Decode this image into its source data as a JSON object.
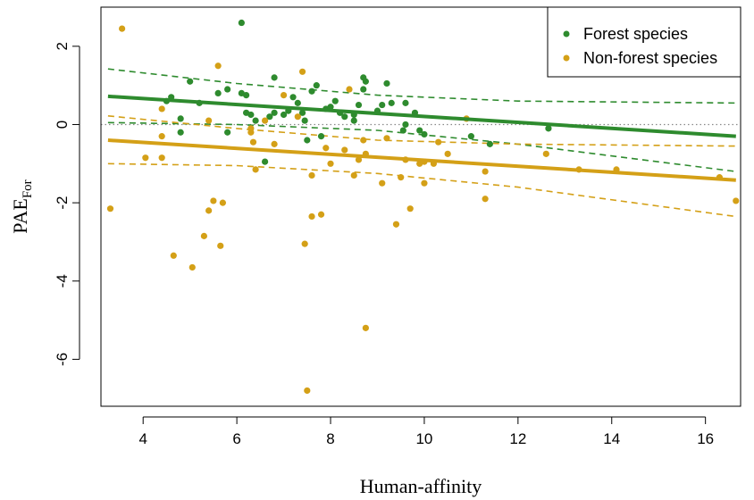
{
  "chart_data": {
    "type": "scatter",
    "xlabel": "Human-affinity",
    "ylabel_main": "PAE",
    "ylabel_sub": "For",
    "xlim": [
      3.1,
      16.75
    ],
    "ylim": [
      -7.2,
      3.0
    ],
    "xticks": [
      4,
      6,
      8,
      10,
      12,
      14,
      16
    ],
    "yticks": [
      2,
      0,
      -2,
      -4,
      -6
    ],
    "reference_line": 0,
    "grid": false,
    "legend_position": "top-right",
    "colors": {
      "forest": "#2e8b2e",
      "nonforest": "#d4a017",
      "reference": "#888888"
    },
    "series": [
      {
        "name": "Forest species",
        "points": [
          [
            4.5,
            0.6
          ],
          [
            4.6,
            0.7
          ],
          [
            4.8,
            0.15
          ],
          [
            4.8,
            -0.2
          ],
          [
            5.0,
            1.1
          ],
          [
            5.2,
            0.55
          ],
          [
            5.6,
            0.8
          ],
          [
            5.8,
            0.9
          ],
          [
            5.8,
            -0.2
          ],
          [
            6.1,
            2.6
          ],
          [
            6.1,
            0.8
          ],
          [
            6.2,
            0.75
          ],
          [
            6.2,
            0.3
          ],
          [
            6.3,
            0.25
          ],
          [
            6.4,
            0.1
          ],
          [
            6.6,
            -0.95
          ],
          [
            6.7,
            0.2
          ],
          [
            6.8,
            0.3
          ],
          [
            6.8,
            1.2
          ],
          [
            7.0,
            0.25
          ],
          [
            7.1,
            0.35
          ],
          [
            7.2,
            0.7
          ],
          [
            7.3,
            0.55
          ],
          [
            7.4,
            0.3
          ],
          [
            7.45,
            0.1
          ],
          [
            7.5,
            -0.4
          ],
          [
            7.6,
            0.85
          ],
          [
            7.7,
            1.0
          ],
          [
            7.8,
            -0.3
          ],
          [
            7.9,
            0.4
          ],
          [
            8.0,
            0.45
          ],
          [
            8.1,
            0.6
          ],
          [
            8.2,
            0.3
          ],
          [
            8.3,
            0.2
          ],
          [
            8.5,
            0.25
          ],
          [
            8.6,
            0.5
          ],
          [
            8.7,
            1.2
          ],
          [
            8.7,
            0.9
          ],
          [
            8.75,
            1.1
          ],
          [
            8.5,
            0.1
          ],
          [
            9.0,
            0.35
          ],
          [
            9.1,
            0.5
          ],
          [
            9.2,
            1.05
          ],
          [
            9.3,
            0.55
          ],
          [
            9.6,
            0.55
          ],
          [
            9.55,
            -0.15
          ],
          [
            9.6,
            0.0
          ],
          [
            9.8,
            0.3
          ],
          [
            9.9,
            -0.15
          ],
          [
            10.0,
            -0.25
          ],
          [
            11.0,
            -0.3
          ],
          [
            11.4,
            -0.5
          ],
          [
            12.65,
            -0.1
          ]
        ]
      },
      {
        "name": "Non-forest species",
        "points": [
          [
            3.3,
            -2.15
          ],
          [
            3.55,
            2.45
          ],
          [
            4.05,
            -0.85
          ],
          [
            4.4,
            0.4
          ],
          [
            4.4,
            -0.3
          ],
          [
            4.4,
            -0.85
          ],
          [
            4.65,
            -3.35
          ],
          [
            5.05,
            -3.65
          ],
          [
            5.3,
            -2.85
          ],
          [
            5.4,
            0.1
          ],
          [
            5.4,
            -2.2
          ],
          [
            5.5,
            -1.95
          ],
          [
            5.6,
            1.5
          ],
          [
            5.65,
            -3.1
          ],
          [
            5.7,
            -2.0
          ],
          [
            6.3,
            -0.1
          ],
          [
            6.3,
            -0.2
          ],
          [
            6.35,
            -0.45
          ],
          [
            6.4,
            -1.15
          ],
          [
            6.6,
            0.1
          ],
          [
            6.8,
            -0.5
          ],
          [
            7.0,
            0.75
          ],
          [
            7.3,
            0.2
          ],
          [
            7.4,
            1.35
          ],
          [
            7.45,
            -3.05
          ],
          [
            7.5,
            -6.8
          ],
          [
            7.6,
            -2.35
          ],
          [
            7.6,
            -1.3
          ],
          [
            7.8,
            -2.3
          ],
          [
            7.9,
            -0.6
          ],
          [
            8.0,
            -1.0
          ],
          [
            8.3,
            -0.65
          ],
          [
            8.4,
            0.9
          ],
          [
            8.5,
            -1.3
          ],
          [
            8.6,
            -0.9
          ],
          [
            8.7,
            -0.4
          ],
          [
            8.75,
            -5.2
          ],
          [
            8.75,
            -0.75
          ],
          [
            9.1,
            -1.5
          ],
          [
            9.2,
            -0.35
          ],
          [
            9.4,
            -2.55
          ],
          [
            9.5,
            -1.35
          ],
          [
            9.6,
            -0.9
          ],
          [
            9.7,
            -2.15
          ],
          [
            9.9,
            -1.0
          ],
          [
            10.0,
            -1.5
          ],
          [
            10.0,
            -0.95
          ],
          [
            10.2,
            -1.0
          ],
          [
            10.3,
            -0.45
          ],
          [
            10.5,
            -0.75
          ],
          [
            10.9,
            0.15
          ],
          [
            11.3,
            -1.2
          ],
          [
            11.3,
            -1.9
          ],
          [
            12.6,
            -0.75
          ],
          [
            13.3,
            -1.15
          ],
          [
            14.1,
            -1.15
          ],
          [
            16.3,
            -1.35
          ],
          [
            16.65,
            -1.95
          ]
        ]
      }
    ],
    "fit_lines": [
      {
        "series": "Forest species",
        "fit": [
          [
            3.25,
            0.72
          ],
          [
            16.65,
            -0.3
          ]
        ],
        "upper": [
          [
            3.25,
            1.42
          ],
          [
            6.0,
            1.05
          ],
          [
            9.0,
            0.75
          ],
          [
            12.0,
            0.6
          ],
          [
            16.65,
            0.55
          ]
        ],
        "lower": [
          [
            3.25,
            0.05
          ],
          [
            6.0,
            0.0
          ],
          [
            9.0,
            -0.15
          ],
          [
            12.0,
            -0.5
          ],
          [
            16.65,
            -1.2
          ]
        ]
      },
      {
        "series": "Non-forest species",
        "fit": [
          [
            3.25,
            -0.4
          ],
          [
            16.65,
            -1.42
          ]
        ],
        "upper": [
          [
            3.25,
            0.22
          ],
          [
            6.0,
            -0.1
          ],
          [
            9.0,
            -0.4
          ],
          [
            12.0,
            -0.5
          ],
          [
            16.65,
            -0.55
          ]
        ],
        "lower": [
          [
            3.25,
            -1.0
          ],
          [
            6.0,
            -1.05
          ],
          [
            9.0,
            -1.25
          ],
          [
            12.0,
            -1.6
          ],
          [
            16.65,
            -2.35
          ]
        ]
      }
    ]
  }
}
